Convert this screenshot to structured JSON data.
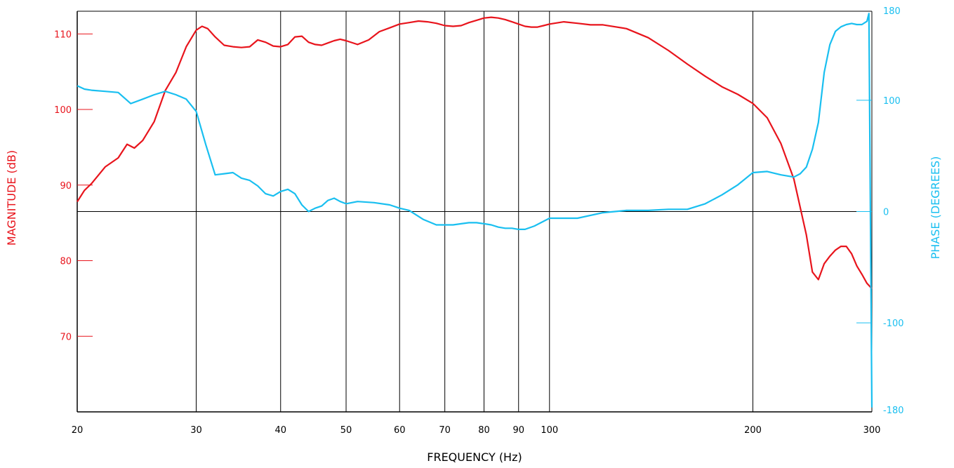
{
  "chart_data": {
    "type": "line",
    "xlabel": "FREQUENCY (Hz)",
    "ylabel_left": "MAGNITUDE (dB)",
    "ylabel_right": "PHASE (DEGREES)",
    "x_scale": "log",
    "xlim": [
      20,
      300
    ],
    "ylim_left": [
      60,
      113
    ],
    "ylim_right": [
      -180,
      180
    ],
    "x_ticks": [
      20,
      30,
      40,
      50,
      60,
      70,
      80,
      90,
      100,
      200,
      300
    ],
    "y_left_ticks": [
      70,
      80,
      90,
      100,
      110
    ],
    "y_right_ticks": [
      -180,
      -100,
      0,
      100,
      180
    ],
    "grid": "vertical lines at x ticks, horizontal line at phase 0",
    "colors": {
      "magnitude": "#e8141c",
      "phase": "#19bff0",
      "axis": "#000000"
    },
    "series": [
      {
        "axis": "left",
        "x": [
          20,
          20.5,
          21,
          22,
          23,
          23.7,
          24.3,
          25,
          26,
          27,
          28,
          29,
          30,
          30.6,
          31.2,
          32,
          33,
          34,
          35,
          36,
          37,
          38,
          39,
          40,
          41,
          42,
          43,
          44,
          45,
          46,
          47,
          48,
          49,
          50,
          52,
          54,
          56,
          58,
          60,
          62,
          64,
          66,
          68,
          70,
          72,
          74,
          76,
          78,
          80,
          82,
          84,
          86,
          88,
          90,
          92,
          94,
          96,
          98,
          100,
          105,
          110,
          115,
          120,
          130,
          140,
          150,
          160,
          170,
          180,
          190,
          200,
          210,
          220,
          230,
          240,
          245,
          250,
          255,
          260,
          265,
          270,
          275,
          280,
          285,
          290,
          295,
          300
        ],
        "y": [
          87.8,
          89.3,
          90.2,
          92.4,
          93.6,
          95.4,
          94.9,
          95.9,
          98.4,
          102.5,
          104.9,
          108.3,
          110.5,
          111.0,
          110.7,
          109.6,
          108.5,
          108.3,
          108.2,
          108.3,
          109.2,
          108.9,
          108.4,
          108.3,
          108.6,
          109.6,
          109.7,
          108.9,
          108.6,
          108.5,
          108.8,
          109.1,
          109.3,
          109.1,
          108.6,
          109.2,
          110.3,
          110.8,
          111.3,
          111.5,
          111.7,
          111.6,
          111.4,
          111.1,
          111.0,
          111.1,
          111.5,
          111.8,
          112.1,
          112.2,
          112.1,
          111.9,
          111.6,
          111.3,
          111.0,
          110.9,
          110.9,
          111.1,
          111.3,
          111.6,
          111.4,
          111.2,
          111.2,
          110.7,
          109.5,
          107.8,
          106.0,
          104.4,
          103.0,
          102.0,
          100.8,
          98.9,
          95.5,
          90.8,
          83.4,
          78.5,
          77.5,
          79.6,
          80.6,
          81.4,
          81.9,
          81.9,
          80.9,
          79.3,
          78.2,
          77.0,
          76.3
        ]
      },
      {
        "axis": "right",
        "x": [
          20,
          20.5,
          21,
          22,
          23,
          24,
          25,
          26,
          27,
          28,
          29,
          30,
          31,
          32,
          33,
          34,
          35,
          36,
          37,
          38,
          39,
          40,
          41,
          42,
          43,
          44,
          45,
          46,
          47,
          48,
          49,
          50,
          52,
          55,
          58,
          60,
          62,
          65,
          68,
          70,
          72,
          74,
          76,
          78,
          80,
          82,
          84,
          86,
          88,
          90,
          92,
          95,
          100,
          110,
          120,
          130,
          140,
          150,
          160,
          170,
          180,
          190,
          200,
          210,
          220,
          230,
          235,
          240,
          245,
          250,
          255,
          260,
          265,
          270,
          275,
          280,
          285,
          290,
          295,
          297,
          300
        ],
        "y": [
          113,
          110,
          109,
          108,
          107,
          97,
          101,
          105,
          108,
          105,
          101,
          90,
          60,
          33,
          34,
          35,
          30,
          28,
          23,
          16,
          14,
          18,
          20,
          16,
          6,
          0,
          3,
          5,
          10,
          12,
          9,
          7,
          9,
          8,
          6,
          3,
          1,
          -7,
          -12,
          -12,
          -12,
          -11,
          -10,
          -10,
          -11,
          -12,
          -14,
          -15,
          -15,
          -16,
          -16,
          -13,
          -6,
          -6,
          -1,
          1,
          1,
          2,
          2,
          7,
          15,
          24,
          35,
          36,
          33,
          31,
          34,
          40,
          56,
          80,
          125,
          150,
          162,
          166,
          168,
          169,
          168,
          168,
          171,
          178,
          -176
        ]
      }
    ]
  }
}
